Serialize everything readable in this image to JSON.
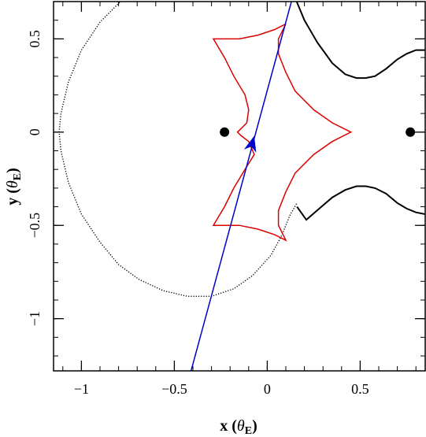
{
  "chart_data": {
    "type": "scatter",
    "title": "",
    "xlabel": {
      "prefix": "x (",
      "symbol": "θ",
      "subscript": "E",
      "suffix": ")"
    },
    "ylabel": {
      "prefix": "y (",
      "symbol": "θ",
      "subscript": "E",
      "suffix": ")"
    },
    "xlim": [
      -1.15,
      0.85
    ],
    "ylim": [
      -1.28,
      0.7
    ],
    "x_ticks": [
      -1,
      -0.5,
      0,
      0.5
    ],
    "x_tick_labels": [
      "−1",
      "−0.5",
      "0",
      "0.5"
    ],
    "y_ticks": [
      -1,
      -0.5,
      0,
      0.5
    ],
    "y_tick_labels": [
      "−1",
      "−0.5",
      "0",
      "0.5"
    ],
    "x_minor_step": 0.1,
    "y_minor_step": 0.1,
    "grid": false,
    "lens_masses": [
      {
        "x": -0.23,
        "y": 0
      },
      {
        "x": 0.77,
        "y": 0
      }
    ],
    "critical_curve_left": {
      "style": "dotted",
      "color": "#000000",
      "points": [
        [
          0.13,
          0.7
        ],
        [
          0.06,
          0.74
        ],
        [
          -0.05,
          0.79
        ],
        [
          -0.2,
          0.83
        ],
        [
          -0.35,
          0.85
        ],
        [
          -0.5,
          0.84
        ],
        [
          -0.65,
          0.79
        ],
        [
          -0.78,
          0.71
        ],
        [
          -0.9,
          0.59
        ],
        [
          -1.0,
          0.44
        ],
        [
          -1.07,
          0.27
        ],
        [
          -1.11,
          0.1
        ],
        [
          -1.12,
          0
        ],
        [
          -1.11,
          -0.1
        ],
        [
          -1.07,
          -0.27
        ],
        [
          -1.0,
          -0.44
        ],
        [
          -0.9,
          -0.59
        ],
        [
          -0.8,
          -0.71
        ],
        [
          -0.69,
          -0.79
        ],
        [
          -0.56,
          -0.85
        ],
        [
          -0.43,
          -0.88
        ],
        [
          -0.3,
          -0.88
        ],
        [
          -0.18,
          -0.84
        ],
        [
          -0.08,
          -0.77
        ],
        [
          0.02,
          -0.66
        ],
        [
          0.08,
          -0.55
        ],
        [
          0.12,
          -0.45
        ],
        [
          0.16,
          -0.38
        ]
      ]
    },
    "critical_curve_right_upper": {
      "style": "solid",
      "color": "#000000",
      "points": [
        [
          0.15,
          0.72
        ],
        [
          0.2,
          0.6
        ],
        [
          0.27,
          0.48
        ],
        [
          0.35,
          0.37
        ],
        [
          0.42,
          0.31
        ],
        [
          0.48,
          0.29
        ],
        [
          0.53,
          0.29
        ],
        [
          0.58,
          0.3
        ],
        [
          0.64,
          0.34
        ],
        [
          0.7,
          0.39
        ],
        [
          0.75,
          0.42
        ],
        [
          0.8,
          0.44
        ],
        [
          0.85,
          0.44
        ]
      ]
    },
    "critical_curve_right_lower": {
      "style": "solid",
      "color": "#000000",
      "points": [
        [
          0.85,
          -0.44
        ],
        [
          0.8,
          -0.43
        ],
        [
          0.75,
          -0.41
        ],
        [
          0.7,
          -0.38
        ],
        [
          0.64,
          -0.33
        ],
        [
          0.58,
          -0.3
        ],
        [
          0.53,
          -0.29
        ],
        [
          0.48,
          -0.29
        ],
        [
          0.42,
          -0.31
        ],
        [
          0.35,
          -0.35
        ],
        [
          0.28,
          -0.41
        ],
        [
          0.21,
          -0.47
        ],
        [
          0.16,
          -0.4
        ]
      ]
    },
    "caustic": {
      "style": "solid",
      "color": "#dd0000",
      "points": [
        [
          0.1,
          0.58
        ],
        [
          0.06,
          0.5
        ],
        [
          0.06,
          0.42
        ],
        [
          0.1,
          0.32
        ],
        [
          0.15,
          0.22
        ],
        [
          0.25,
          0.12
        ],
        [
          0.35,
          0.05
        ],
        [
          0.45,
          0
        ],
        [
          0.35,
          -0.05
        ],
        [
          0.25,
          -0.12
        ],
        [
          0.15,
          -0.22
        ],
        [
          0.1,
          -0.32
        ],
        [
          0.06,
          -0.42
        ],
        [
          0.06,
          -0.5
        ],
        [
          0.1,
          -0.58
        ],
        [
          0.04,
          -0.55
        ],
        [
          -0.05,
          -0.52
        ],
        [
          -0.15,
          -0.5
        ],
        [
          -0.29,
          -0.5
        ],
        [
          -0.23,
          -0.4
        ],
        [
          -0.18,
          -0.3
        ],
        [
          -0.12,
          -0.2
        ],
        [
          -0.07,
          -0.12
        ],
        [
          -0.1,
          -0.05
        ],
        [
          -0.14,
          -0.02
        ],
        [
          -0.16,
          0
        ],
        [
          -0.14,
          0.02
        ],
        [
          -0.11,
          0.05
        ],
        [
          -0.1,
          0.12
        ],
        [
          -0.12,
          0.2
        ],
        [
          -0.18,
          0.3
        ],
        [
          -0.23,
          0.4
        ],
        [
          -0.29,
          0.5
        ],
        [
          -0.15,
          0.5
        ],
        [
          -0.05,
          0.52
        ],
        [
          0.04,
          0.55
        ],
        [
          0.1,
          0.58
        ]
      ]
    },
    "source_trajectory": {
      "style": "solid",
      "color": "#0000cc",
      "points": [
        [
          -0.41,
          -1.28
        ],
        [
          0.13,
          0.7
        ]
      ],
      "arrow_at": [
        -0.07,
        -0.02
      ],
      "arrow_direction": [
        0.263,
        0.965
      ]
    }
  }
}
